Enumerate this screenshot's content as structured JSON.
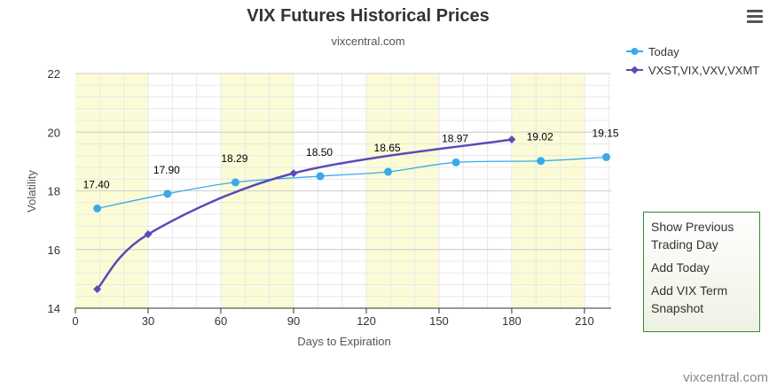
{
  "chart_data": {
    "type": "line",
    "title": "VIX Futures Historical Prices",
    "subtitle": "vixcentral.com",
    "xlabel": "Days to Expiration",
    "ylabel": "Volatility",
    "xlim": [
      0,
      221
    ],
    "ylim": [
      14,
      22
    ],
    "x_ticks": [
      "0",
      "30",
      "60",
      "90",
      "120",
      "150",
      "180",
      "210"
    ],
    "y_ticks": [
      "14",
      "16",
      "18",
      "20",
      "22"
    ],
    "grid": true,
    "legend_position": "top-right",
    "shaded_x_bands": [
      [
        0,
        30
      ],
      [
        60,
        90
      ],
      [
        120,
        150
      ],
      [
        180,
        210
      ]
    ],
    "series": [
      {
        "name": "Today",
        "color": "#3aa9ea",
        "marker": "circle",
        "x": [
          9,
          38,
          66,
          101,
          129,
          157,
          192,
          219
        ],
        "y": [
          17.4,
          17.9,
          18.29,
          18.5,
          18.65,
          18.97,
          19.02,
          19.15
        ],
        "labels": [
          "17.40",
          "17.90",
          "18.29",
          "18.50",
          "18.65",
          "18.97",
          "19.02",
          "19.15"
        ]
      },
      {
        "name": "VXST,VIX,VXV,VXMT",
        "color": "#5a4bb8",
        "marker": "diamond",
        "x": [
          9,
          30,
          90,
          180
        ],
        "y": [
          14.65,
          16.52,
          18.6,
          19.75
        ]
      }
    ]
  },
  "panel": {
    "items": [
      "Show Previous Trading Day",
      "Add Today",
      "Add VIX Term Snapshot"
    ]
  },
  "menu": {
    "icon": "hamburger-menu-icon"
  },
  "credit": "vixcentral.com"
}
